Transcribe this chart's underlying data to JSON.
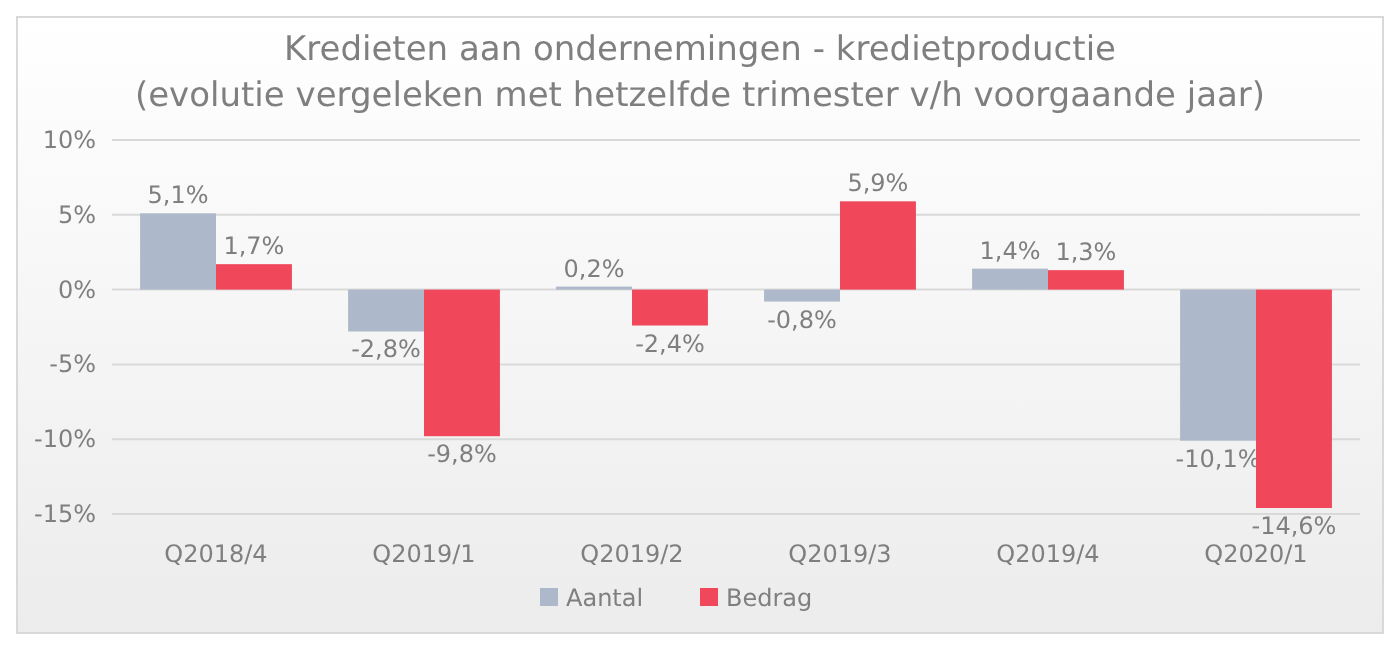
{
  "chart_data": {
    "type": "bar",
    "title": "Kredieten aan ondernemingen - kredietproductie",
    "subtitle": "(evolutie vergeleken met hetzelfde trimester v/h voorgaande jaar)",
    "categories": [
      "Q2018/4",
      "Q2019/1",
      "Q2019/2",
      "Q2019/3",
      "Q2019/4",
      "Q2020/1"
    ],
    "series": [
      {
        "name": "Aantal",
        "color": "#adb9ca",
        "values": [
          5.1,
          -2.8,
          0.2,
          -0.8,
          1.4,
          -10.1
        ],
        "value_labels": [
          "5,1%",
          "-2,8%",
          "0,2%",
          "-0,8%",
          "1,4%",
          "-10,1%"
        ]
      },
      {
        "name": "Bedrag",
        "color": "#f0475a",
        "values": [
          1.7,
          -9.8,
          -2.4,
          5.9,
          1.3,
          -14.6
        ],
        "value_labels": [
          "1,7%",
          "-9,8%",
          "-2,4%",
          "5,9%",
          "1,3%",
          "-14,6%"
        ]
      }
    ],
    "ylim": [
      -15,
      10
    ],
    "yticks": [
      {
        "value": -15,
        "label": "-15%"
      },
      {
        "value": -10,
        "label": "-10%"
      },
      {
        "value": -5,
        "label": "-5%"
      },
      {
        "value": 0,
        "label": "0%"
      },
      {
        "value": 5,
        "label": "5%"
      },
      {
        "value": 10,
        "label": "10%"
      }
    ],
    "grid": "y",
    "legend": "bottom"
  }
}
